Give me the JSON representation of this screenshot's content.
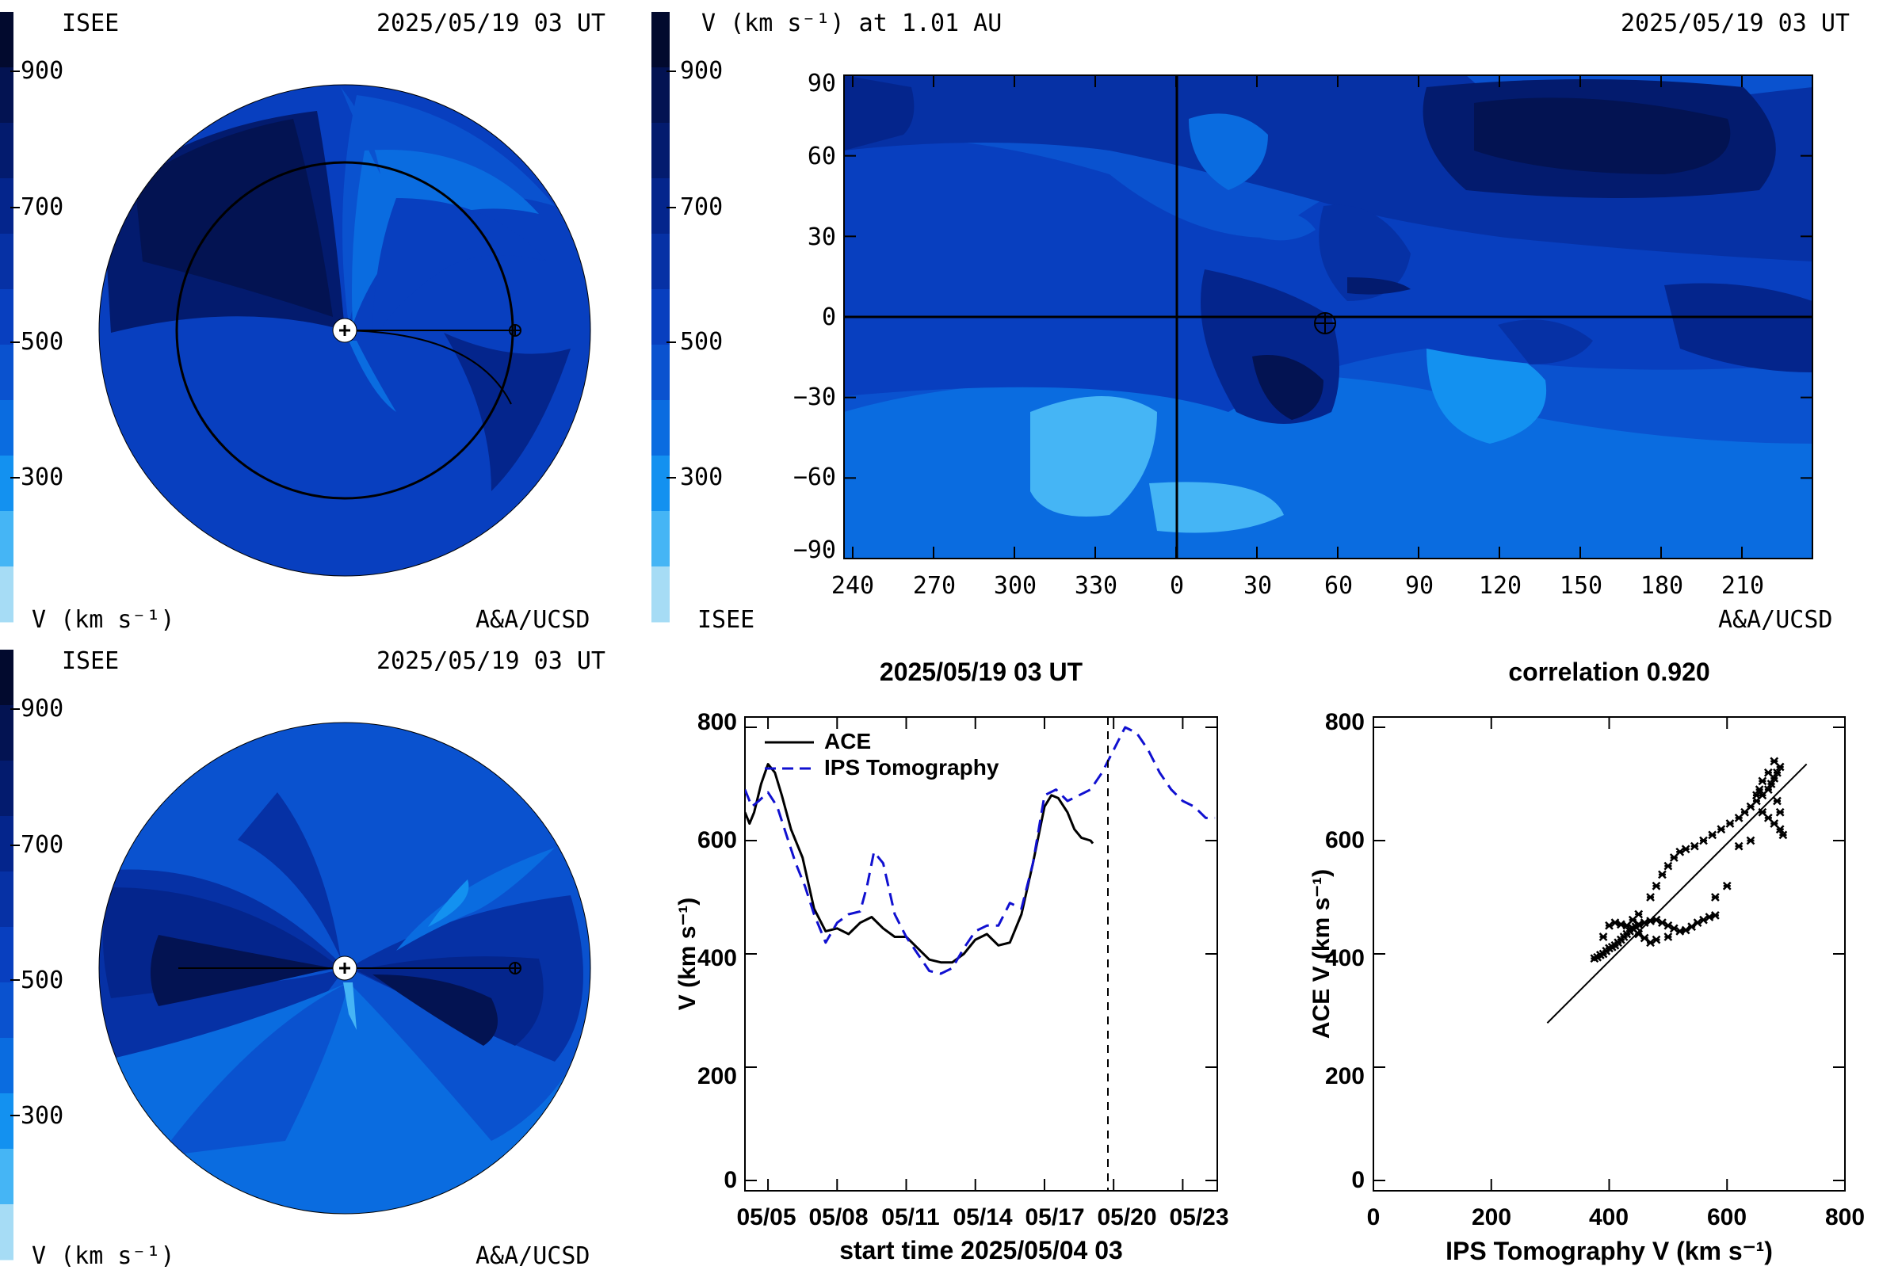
{
  "colors": {
    "levels": [
      "#a6dcf5",
      "#45b5f5",
      "#1391f0",
      "#0a6ce0",
      "#0a52cf",
      "#083fbf",
      "#0631a5",
      "#04258c",
      "#031b6e",
      "#031352",
      "#020a2e"
    ],
    "sc_line": "#000000",
    "ace_line": "#000000",
    "ips_line": "#1010d0"
  },
  "icons": {
    "sun": "sun-marker-icon",
    "earth": "earth-marker-icon"
  },
  "panel_top_left": {
    "org": "ISEE",
    "timestamp": "2025/05/19 03 UT",
    "colorbar_ticks": [
      "900",
      "700",
      "500",
      "300"
    ],
    "unit_label": "V (km s⁻¹)",
    "credit": "A&A/UCSD",
    "view": "ecliptic",
    "background_level": 5
  },
  "panel_bottom_left": {
    "org": "ISEE",
    "timestamp": "2025/05/19 03 UT",
    "colorbar_ticks": [
      "900",
      "700",
      "500",
      "300"
    ],
    "unit_label": "V (km s⁻¹)",
    "credit": "A&A/UCSD",
    "view": "meridional",
    "background_level": 4
  },
  "panel_map": {
    "title": "V (km s⁻¹) at 1.01 AU",
    "timestamp": "2025/05/19 03 UT",
    "colorbar_ticks": [
      "900",
      "700",
      "500",
      "300"
    ],
    "org": "ISEE",
    "credit": "A&A/UCSD",
    "lat_ticks": [
      "90",
      "60",
      "30",
      "0",
      "−30",
      "−60",
      "−90"
    ],
    "lon_ticks": [
      "240",
      "270",
      "300",
      "330",
      "0",
      "30",
      "60",
      "90",
      "120",
      "150",
      "180",
      "210"
    ],
    "background_level": 4
  },
  "panel_timeseries": {
    "title": "2025/05/19 03 UT",
    "ylabel": "V (km s⁻¹)",
    "xlabel": "start time 2025/05/04 03",
    "y_ticks": [
      "800",
      "600",
      "400",
      "200",
      "0"
    ],
    "x_ticks": [
      "05/05",
      "05/08",
      "05/11",
      "05/14",
      "05/17",
      "05/20",
      "05/23"
    ],
    "legend": [
      "ACE",
      "IPS Tomography"
    ]
  },
  "panel_scatter": {
    "title": "correlation 0.920",
    "ylabel": "ACE V (km s⁻¹)",
    "xlabel": "IPS Tomography V (km s⁻¹)",
    "y_ticks": [
      "800",
      "600",
      "400",
      "200",
      "0"
    ],
    "x_ticks": [
      "0",
      "200",
      "400",
      "600",
      "800"
    ]
  },
  "chart_data": [
    {
      "type": "line",
      "title": "2025/05/19 03 UT",
      "xlabel": "start time 2025/05/04 03",
      "ylabel": "V (km s⁻¹)",
      "x_unit": "days since start time",
      "xlim": [
        0,
        20.5
      ],
      "ylim": [
        0,
        800
      ],
      "current_time_marker": 15.1,
      "series": [
        {
          "name": "ACE",
          "x": [
            0.0,
            0.2,
            0.4,
            0.7,
            1.0,
            1.3,
            1.6,
            2.0,
            2.5,
            3.0,
            3.5,
            4.0,
            4.5,
            5.0,
            5.5,
            6.0,
            6.5,
            7.0,
            7.5,
            8.0,
            8.5,
            9.0,
            9.5,
            10.0,
            10.5,
            11.0,
            11.5,
            12.0,
            12.5,
            13.0,
            13.3,
            13.6,
            14.0,
            14.3,
            14.6,
            15.0,
            15.1
          ],
          "y": [
            650,
            630,
            650,
            700,
            735,
            720,
            680,
            620,
            570,
            480,
            440,
            445,
            435,
            455,
            465,
            445,
            430,
            430,
            410,
            390,
            385,
            385,
            400,
            425,
            435,
            415,
            420,
            470,
            560,
            660,
            680,
            675,
            650,
            620,
            605,
            600,
            595
          ]
        },
        {
          "name": "IPS Tomography",
          "x": [
            0.0,
            0.3,
            0.6,
            1.0,
            1.4,
            1.8,
            2.2,
            2.6,
            3.0,
            3.5,
            4.0,
            4.5,
            5.0,
            5.3,
            5.6,
            6.0,
            6.5,
            7.0,
            7.5,
            8.0,
            8.5,
            9.0,
            9.5,
            10.0,
            10.5,
            11.0,
            11.5,
            12.0,
            12.5,
            13.0,
            13.5,
            14.0,
            14.5,
            15.0,
            15.5,
            16.0,
            16.5,
            17.0,
            17.5,
            18.0,
            18.5,
            19.0,
            19.5,
            20.0,
            20.4
          ],
          "y": [
            690,
            660,
            670,
            685,
            660,
            610,
            560,
            520,
            470,
            420,
            455,
            470,
            475,
            520,
            580,
            560,
            470,
            430,
            400,
            370,
            365,
            375,
            410,
            440,
            450,
            450,
            490,
            480,
            560,
            680,
            690,
            670,
            680,
            690,
            720,
            760,
            800,
            790,
            760,
            720,
            690,
            670,
            660,
            640,
            640
          ]
        }
      ]
    },
    {
      "type": "scatter",
      "title": "correlation 0.920",
      "xlabel": "IPS Tomography V (km s⁻¹)",
      "ylabel": "ACE V (km s⁻¹)",
      "xlim": [
        0,
        800
      ],
      "ylim": [
        0,
        800
      ],
      "fit_line": {
        "x": [
          295,
          735
        ],
        "y": [
          278,
          735
        ]
      },
      "points": [
        [
          375,
          392
        ],
        [
          380,
          394
        ],
        [
          385,
          398
        ],
        [
          390,
          400
        ],
        [
          395,
          405
        ],
        [
          400,
          410
        ],
        [
          405,
          412
        ],
        [
          410,
          415
        ],
        [
          415,
          420
        ],
        [
          420,
          425
        ],
        [
          425,
          430
        ],
        [
          430,
          435
        ],
        [
          435,
          440
        ],
        [
          440,
          445
        ],
        [
          445,
          448
        ],
        [
          450,
          452
        ],
        [
          460,
          455
        ],
        [
          470,
          458
        ],
        [
          480,
          460
        ],
        [
          490,
          455
        ],
        [
          500,
          450
        ],
        [
          510,
          445
        ],
        [
          520,
          440
        ],
        [
          530,
          442
        ],
        [
          540,
          448
        ],
        [
          550,
          455
        ],
        [
          560,
          460
        ],
        [
          570,
          465
        ],
        [
          580,
          468
        ],
        [
          500,
          430
        ],
        [
          480,
          425
        ],
        [
          470,
          420
        ],
        [
          460,
          428
        ],
        [
          450,
          435
        ],
        [
          440,
          445
        ],
        [
          430,
          450
        ],
        [
          420,
          452
        ],
        [
          410,
          455
        ],
        [
          400,
          450
        ],
        [
          390,
          430
        ],
        [
          470,
          500
        ],
        [
          480,
          520
        ],
        [
          490,
          540
        ],
        [
          500,
          555
        ],
        [
          510,
          570
        ],
        [
          520,
          580
        ],
        [
          530,
          585
        ],
        [
          545,
          590
        ],
        [
          560,
          600
        ],
        [
          575,
          610
        ],
        [
          590,
          620
        ],
        [
          605,
          630
        ],
        [
          620,
          640
        ],
        [
          630,
          650
        ],
        [
          640,
          660
        ],
        [
          650,
          670
        ],
        [
          660,
          680
        ],
        [
          670,
          690
        ],
        [
          675,
          700
        ],
        [
          680,
          710
        ],
        [
          685,
          720
        ],
        [
          690,
          730
        ],
        [
          680,
          740
        ],
        [
          670,
          720
        ],
        [
          660,
          705
        ],
        [
          655,
          690
        ],
        [
          650,
          680
        ],
        [
          660,
          650
        ],
        [
          670,
          640
        ],
        [
          680,
          630
        ],
        [
          690,
          620
        ],
        [
          695,
          610
        ],
        [
          690,
          650
        ],
        [
          685,
          670
        ],
        [
          640,
          600
        ],
        [
          620,
          590
        ],
        [
          600,
          520
        ],
        [
          580,
          500
        ],
        [
          440,
          460
        ],
        [
          450,
          470
        ]
      ]
    }
  ]
}
